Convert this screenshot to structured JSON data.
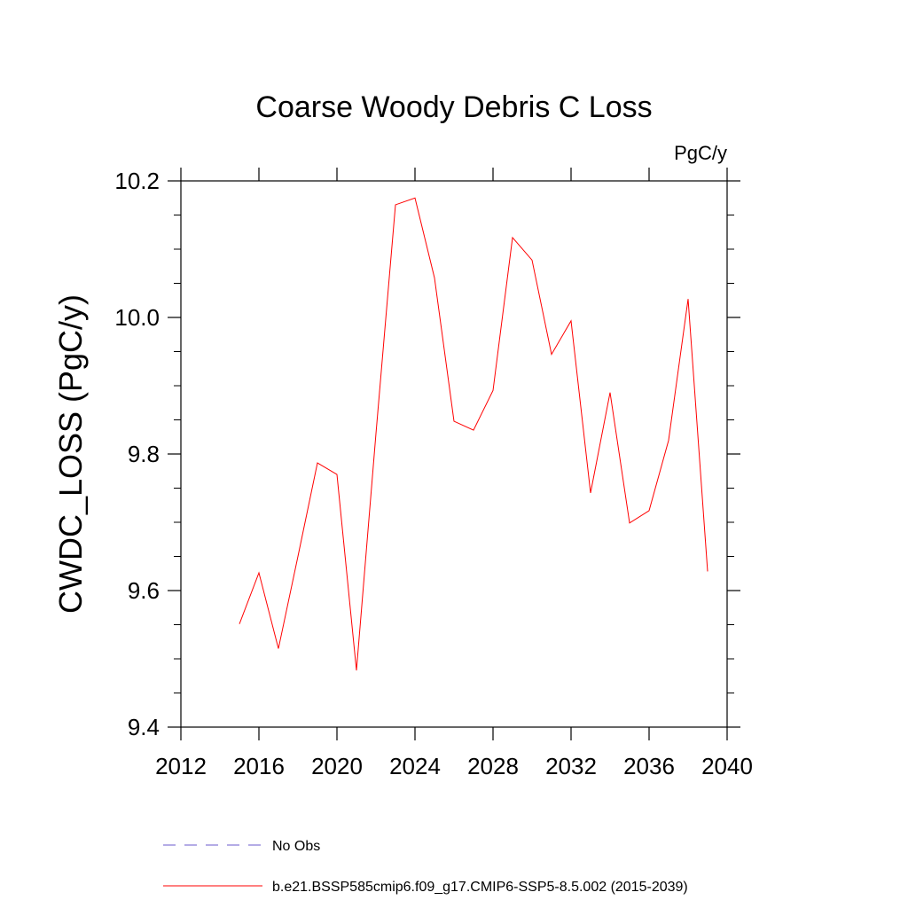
{
  "chart_data": {
    "type": "line",
    "title": "Coarse Woody Debris C Loss",
    "units": "PgC/y",
    "xlabel": "",
    "ylabel": "CWDC_LOSS  (PgC/y)",
    "xlim": [
      2012,
      2040
    ],
    "ylim": [
      9.4,
      10.2
    ],
    "x_ticks": [
      2012,
      2016,
      2020,
      2024,
      2028,
      2032,
      2036,
      2040
    ],
    "x_tick_labels": [
      "2012",
      "2016",
      "2020",
      "2024",
      "2028",
      "2032",
      "2036",
      "2040"
    ],
    "y_ticks": [
      9.4,
      9.6,
      9.8,
      10.0,
      10.2
    ],
    "y_tick_labels": [
      "9.4",
      "9.6",
      "9.8",
      "10.0",
      "10.2"
    ],
    "grid": false,
    "legend_position": "bottom",
    "series": [
      {
        "name": "b.e21.BSSP585cmip6.f09_g17.CMIP6-SSP5-8.5.002 (2015-2039)",
        "color": "#ff0000",
        "style": "solid",
        "x": [
          2015,
          2016,
          2017,
          2018,
          2019,
          2020,
          2021,
          2022,
          2023,
          2024,
          2025,
          2026,
          2027,
          2028,
          2029,
          2030,
          2031,
          2032,
          2033,
          2034,
          2035,
          2036,
          2037,
          2038,
          2039
        ],
        "values": [
          9.551,
          9.626,
          9.515,
          9.65,
          9.787,
          9.77,
          9.483,
          9.83,
          10.165,
          10.175,
          10.058,
          9.848,
          9.835,
          9.893,
          10.117,
          10.084,
          9.946,
          9.995,
          9.743,
          9.89,
          9.699,
          9.717,
          9.82,
          10.027,
          9.628
        ]
      },
      {
        "name": "No Obs",
        "color": "#6a5acd",
        "style": "dashed",
        "x": [],
        "values": []
      }
    ]
  }
}
